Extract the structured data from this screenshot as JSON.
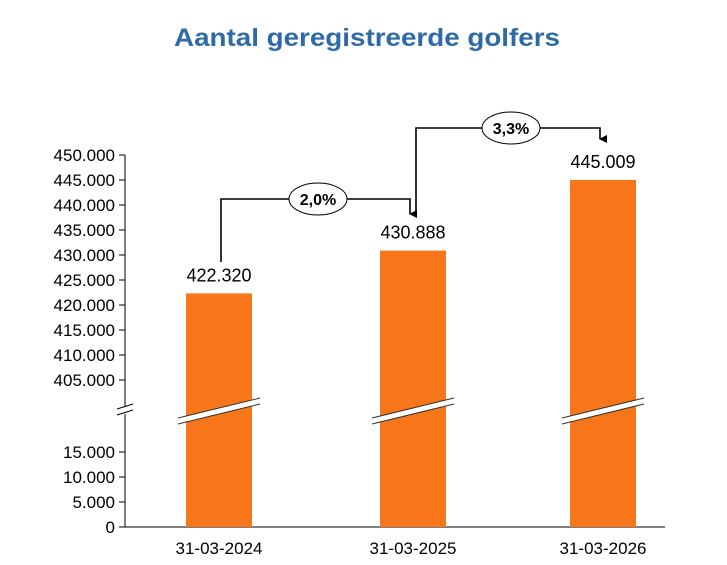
{
  "chart_data": {
    "type": "bar",
    "title": "Aantal geregistreerde golfers",
    "xlabel": "",
    "ylabel": "",
    "categories": [
      "31-03-2024",
      "31-03-2025",
      "31-03-2026"
    ],
    "values": [
      422320,
      430888,
      445009
    ],
    "value_labels": [
      "422.320",
      "430.888",
      "445.009"
    ],
    "bar_color": "#f7761a",
    "title_color": "#2e6aa6",
    "axis_break": true,
    "ylim_lower": [
      0,
      15000
    ],
    "ylim_upper": [
      405000,
      450000
    ],
    "lower_ticks": [
      {
        "value": 0,
        "label": "0"
      },
      {
        "value": 5000,
        "label": "5.000"
      },
      {
        "value": 10000,
        "label": "10.000"
      },
      {
        "value": 15000,
        "label": "15.000"
      }
    ],
    "upper_ticks": [
      {
        "value": 405000,
        "label": "405.000"
      },
      {
        "value": 410000,
        "label": "410.000"
      },
      {
        "value": 415000,
        "label": "415.000"
      },
      {
        "value": 420000,
        "label": "420.000"
      },
      {
        "value": 425000,
        "label": "425.000"
      },
      {
        "value": 430000,
        "label": "430.000"
      },
      {
        "value": 435000,
        "label": "435.000"
      },
      {
        "value": 440000,
        "label": "440.000"
      },
      {
        "value": 445000,
        "label": "445.000"
      },
      {
        "value": 450000,
        "label": "450.000"
      }
    ],
    "annotations": [
      {
        "from": "31-03-2024",
        "to": "31-03-2025",
        "label": "2,0%"
      },
      {
        "from": "31-03-2025",
        "to": "31-03-2026",
        "label": "3,3%"
      }
    ],
    "grid": false,
    "legend": "none"
  }
}
